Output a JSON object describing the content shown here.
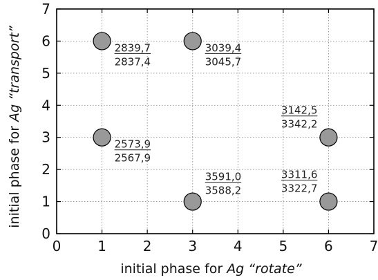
{
  "chart_data": {
    "type": "scatter",
    "xlabel": {
      "prefix": "initial phase for ",
      "em": "Ag “rotate”"
    },
    "ylabel": {
      "prefix": "initial phase for ",
      "em": "Ag “transport”"
    },
    "xlim": [
      0,
      7
    ],
    "ylim": [
      0,
      7
    ],
    "xticks": [
      "0",
      "1",
      "2",
      "3",
      "4",
      "5",
      "6",
      "7"
    ],
    "yticks": [
      "0",
      "1",
      "2",
      "3",
      "4",
      "5",
      "6",
      "7"
    ],
    "grid": true,
    "marker_color": "#999999",
    "points": [
      {
        "x": 1,
        "y": 6,
        "top": "2839,7",
        "bottom": "2837,4",
        "label_pos": "right-below"
      },
      {
        "x": 3,
        "y": 6,
        "top": "3039,4",
        "bottom": "3045,7",
        "label_pos": "right-below"
      },
      {
        "x": 6,
        "y": 3,
        "top": "3142,5",
        "bottom": "3342,2",
        "label_pos": "left-above"
      },
      {
        "x": 1,
        "y": 3,
        "top": "2573,9",
        "bottom": "2567,9",
        "label_pos": "right-below"
      },
      {
        "x": 3,
        "y": 1,
        "top": "3591,0",
        "bottom": "3588,2",
        "label_pos": "right-above"
      },
      {
        "x": 6,
        "y": 1,
        "top": "3311,6",
        "bottom": "3322,7",
        "label_pos": "left-above"
      }
    ]
  }
}
